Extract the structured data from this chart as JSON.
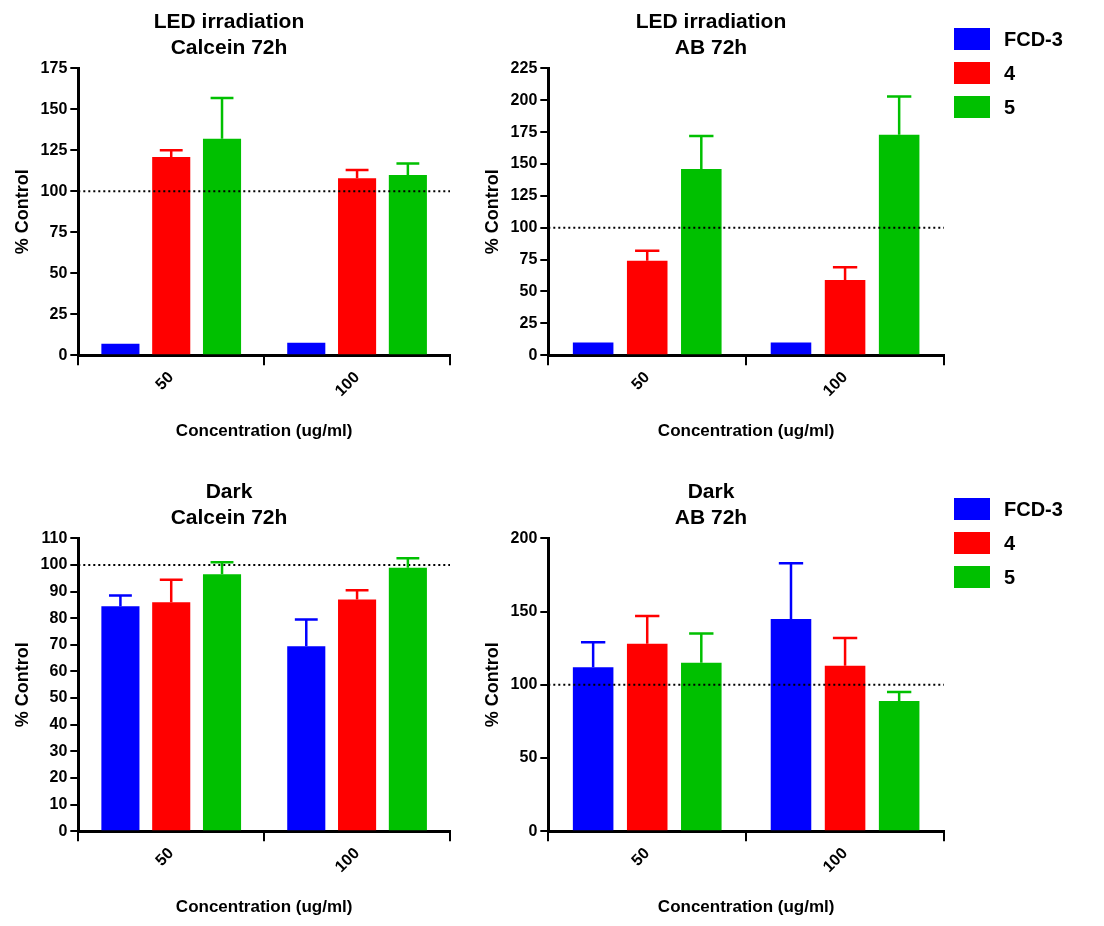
{
  "chart_data": [
    {
      "type": "bar",
      "title": "LED irradiation\nCalcein 72h",
      "xlabel": "Concentration (ug/ml)",
      "ylabel": "% Control",
      "categories": [
        "50",
        "100"
      ],
      "ylim": [
        0,
        175
      ],
      "yticks": [
        0,
        25,
        50,
        75,
        100,
        125,
        150,
        175
      ],
      "grid": false,
      "legend": false,
      "ref_lines": [
        {
          "axis": "y",
          "value": 100,
          "line_style": "dotted",
          "color": "#000000"
        }
      ],
      "series": [
        {
          "color": "#0000ff",
          "values": [
            7,
            7.5
          ],
          "errors": [
            null,
            null
          ]
        },
        {
          "color": "#ff0000",
          "values": [
            121,
            108
          ],
          "errors": [
            [
              121,
              125
            ],
            [
              108,
              113
            ]
          ]
        },
        {
          "color": "#00c000",
          "values": [
            132,
            110
          ],
          "errors": [
            [
              132,
              157
            ],
            [
              110,
              117
            ]
          ]
        }
      ]
    },
    {
      "type": "bar",
      "title": "LED irradiation\nAB 72h",
      "xlabel": "Concentration (ug/ml)",
      "ylabel": "% Control",
      "categories": [
        "50",
        "100"
      ],
      "ylim": [
        0,
        225
      ],
      "yticks": [
        0,
        25,
        50,
        75,
        100,
        125,
        150,
        175,
        200,
        225
      ],
      "grid": false,
      "legend": "right",
      "ref_lines": [
        {
          "axis": "y",
          "value": 100,
          "line_style": "dotted",
          "color": "#000000"
        }
      ],
      "series": [
        {
          "name": "FCD-3",
          "color": "#0000ff",
          "values": [
            10,
            10
          ],
          "errors": [
            null,
            null
          ]
        },
        {
          "name": "4",
          "color": "#ff0000",
          "values": [
            74,
            59
          ],
          "errors": [
            [
              74,
              82
            ],
            [
              59,
              69
            ]
          ]
        },
        {
          "name": "5",
          "color": "#00c000",
          "values": [
            146,
            173
          ],
          "errors": [
            [
              146,
              172
            ],
            [
              173,
              203
            ]
          ]
        }
      ]
    },
    {
      "type": "bar",
      "title": "Dark\nCalcein 72h",
      "xlabel": "Concentration (ug/ml)",
      "ylabel": "% Control",
      "categories": [
        "50",
        "100"
      ],
      "ylim": [
        0,
        110
      ],
      "yticks": [
        0,
        10,
        20,
        30,
        40,
        50,
        60,
        70,
        80,
        90,
        100,
        110
      ],
      "grid": false,
      "legend": false,
      "ref_lines": [
        {
          "axis": "y",
          "value": 100,
          "line_style": "dotted",
          "color": "#000000"
        }
      ],
      "series": [
        {
          "color": "#0000ff",
          "values": [
            84.5,
            69.5
          ],
          "errors": [
            [
              84.5,
              88.5
            ],
            [
              69.5,
              79.5
            ]
          ]
        },
        {
          "color": "#ff0000",
          "values": [
            86,
            87
          ],
          "errors": [
            [
              86,
              94.5
            ],
            [
              87,
              90.5
            ]
          ]
        },
        {
          "color": "#00c000",
          "values": [
            96.5,
            99
          ],
          "errors": [
            [
              96.5,
              101
            ],
            [
              99,
              102.5
            ]
          ]
        }
      ]
    },
    {
      "type": "bar",
      "title": "Dark\nAB 72h",
      "xlabel": "Concentration (ug/ml)",
      "ylabel": "% Control",
      "categories": [
        "50",
        "100"
      ],
      "ylim": [
        0,
        200
      ],
      "yticks": [
        0,
        50,
        100,
        150,
        200
      ],
      "grid": false,
      "legend": "right",
      "ref_lines": [
        {
          "axis": "y",
          "value": 100,
          "line_style": "dotted",
          "color": "#000000"
        }
      ],
      "series": [
        {
          "name": "FCD-3",
          "color": "#0000ff",
          "values": [
            112,
            145
          ],
          "errors": [
            [
              112,
              129
            ],
            [
              145,
              183
            ]
          ]
        },
        {
          "name": "4",
          "color": "#ff0000",
          "values": [
            128,
            113
          ],
          "errors": [
            [
              128,
              147
            ],
            [
              113,
              132
            ]
          ]
        },
        {
          "name": "5",
          "color": "#00c000",
          "values": [
            115,
            89
          ],
          "errors": [
            [
              115,
              135
            ],
            [
              89,
              95
            ]
          ]
        }
      ]
    }
  ]
}
